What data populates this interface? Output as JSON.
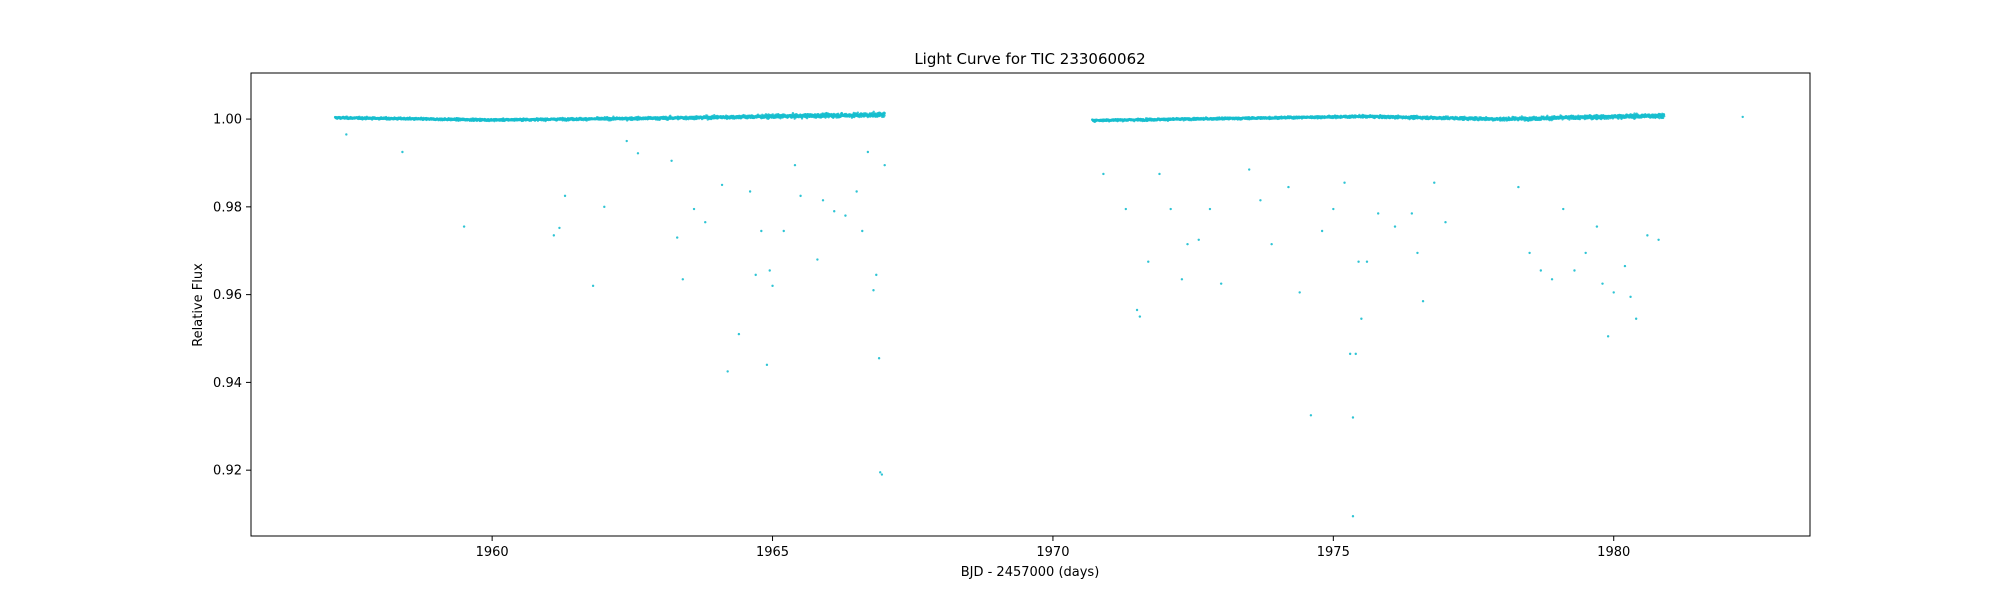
{
  "chart_data": {
    "type": "scatter",
    "title": "Light Curve for TIC 233060062",
    "xlabel": "BJD - 2457000 (days)",
    "ylabel": "Relative Flux",
    "xlim": [
      1955.7,
      1983.5
    ],
    "ylim": [
      0.905,
      1.0105
    ],
    "x_ticks": [
      1960,
      1965,
      1970,
      1975,
      1980
    ],
    "y_ticks": [
      0.92,
      0.94,
      0.96,
      0.98,
      1.0
    ],
    "x_tick_labels": [
      "1960",
      "1965",
      "1970",
      "1975",
      "1980"
    ],
    "y_tick_labels": [
      "0.92",
      "0.94",
      "0.96",
      "0.98",
      "1.00"
    ],
    "grid": false,
    "marker_color": "#17becf",
    "series": [
      {
        "baseline_segments": [
          {
            "x_range": [
              1957.2,
              1967.0
            ],
            "flux": 1.0,
            "trend": [
              [
                1957.2,
                1.0003
              ],
              [
                1960.0,
                0.9998
              ],
              [
                1963.0,
                1.0002
              ],
              [
                1965.0,
                1.0006
              ],
              [
                1967.0,
                1.001
              ]
            ]
          },
          {
            "x_range": [
              1970.7,
              1980.9
            ],
            "flux": 1.0,
            "trend": [
              [
                1970.7,
                0.9997
              ],
              [
                1973.0,
                1.0001
              ],
              [
                1975.5,
                1.0006
              ],
              [
                1978.0,
                1.0
              ],
              [
                1980.9,
                1.0008
              ]
            ]
          }
        ],
        "outliers": [
          [
            1957.4,
            0.9965
          ],
          [
            1958.4,
            0.9925
          ],
          [
            1959.5,
            0.9755
          ],
          [
            1961.1,
            0.9735
          ],
          [
            1961.2,
            0.9752
          ],
          [
            1961.3,
            0.9825
          ],
          [
            1961.8,
            0.962
          ],
          [
            1962.0,
            0.98
          ],
          [
            1962.4,
            0.995
          ],
          [
            1962.6,
            0.9922
          ],
          [
            1963.2,
            0.9905
          ],
          [
            1963.3,
            0.973
          ],
          [
            1963.4,
            0.9635
          ],
          [
            1963.6,
            0.9795
          ],
          [
            1963.8,
            0.9765
          ],
          [
            1964.1,
            0.985
          ],
          [
            1964.2,
            0.9425
          ],
          [
            1964.4,
            0.951
          ],
          [
            1964.6,
            0.9835
          ],
          [
            1964.7,
            0.9645
          ],
          [
            1964.8,
            0.9745
          ],
          [
            1964.9,
            0.944
          ],
          [
            1964.95,
            0.9655
          ],
          [
            1965.0,
            0.962
          ],
          [
            1965.2,
            0.9745
          ],
          [
            1965.4,
            0.9895
          ],
          [
            1965.5,
            0.9825
          ],
          [
            1965.8,
            0.968
          ],
          [
            1965.9,
            0.9815
          ],
          [
            1966.1,
            0.979
          ],
          [
            1966.3,
            0.978
          ],
          [
            1966.5,
            0.9835
          ],
          [
            1966.6,
            0.9745
          ],
          [
            1966.8,
            0.961
          ],
          [
            1966.85,
            0.9645
          ],
          [
            1966.9,
            0.9455
          ],
          [
            1966.92,
            0.9195
          ],
          [
            1966.95,
            0.919
          ],
          [
            1967.0,
            0.9895
          ],
          [
            1966.7,
            0.9925
          ],
          [
            1970.9,
            0.9875
          ],
          [
            1971.3,
            0.9795
          ],
          [
            1971.5,
            0.9565
          ],
          [
            1971.55,
            0.955
          ],
          [
            1971.7,
            0.9675
          ],
          [
            1971.9,
            0.9875
          ],
          [
            1972.1,
            0.9795
          ],
          [
            1972.3,
            0.9635
          ],
          [
            1972.4,
            0.9715
          ],
          [
            1972.6,
            0.9725
          ],
          [
            1972.8,
            0.9795
          ],
          [
            1973.0,
            0.9625
          ],
          [
            1973.5,
            0.9885
          ],
          [
            1973.7,
            0.9815
          ],
          [
            1973.9,
            0.9715
          ],
          [
            1974.2,
            0.9845
          ],
          [
            1974.4,
            0.9605
          ],
          [
            1974.6,
            0.9325
          ],
          [
            1974.8,
            0.9745
          ],
          [
            1975.0,
            0.9795
          ],
          [
            1975.2,
            0.9855
          ],
          [
            1975.3,
            0.9465
          ],
          [
            1975.35,
            0.932
          ],
          [
            1975.4,
            0.9465
          ],
          [
            1975.45,
            0.9675
          ],
          [
            1975.5,
            0.9545
          ],
          [
            1975.6,
            0.9675
          ],
          [
            1975.35,
            0.9095
          ],
          [
            1975.8,
            0.9785
          ],
          [
            1976.1,
            0.9755
          ],
          [
            1976.4,
            0.9785
          ],
          [
            1976.5,
            0.9695
          ],
          [
            1976.6,
            0.9585
          ],
          [
            1976.8,
            0.9855
          ],
          [
            1977.0,
            0.9765
          ],
          [
            1978.3,
            0.9845
          ],
          [
            1978.5,
            0.9695
          ],
          [
            1978.7,
            0.9655
          ],
          [
            1978.9,
            0.9635
          ],
          [
            1979.1,
            0.9795
          ],
          [
            1979.3,
            0.9655
          ],
          [
            1979.5,
            0.9695
          ],
          [
            1979.7,
            0.9755
          ],
          [
            1979.8,
            0.9625
          ],
          [
            1979.9,
            0.9505
          ],
          [
            1980.0,
            0.9605
          ],
          [
            1980.2,
            0.9665
          ],
          [
            1980.3,
            0.9595
          ],
          [
            1980.4,
            0.9545
          ],
          [
            1980.6,
            0.9735
          ],
          [
            1980.8,
            0.9725
          ],
          [
            1982.3,
            1.0005
          ]
        ]
      }
    ]
  }
}
